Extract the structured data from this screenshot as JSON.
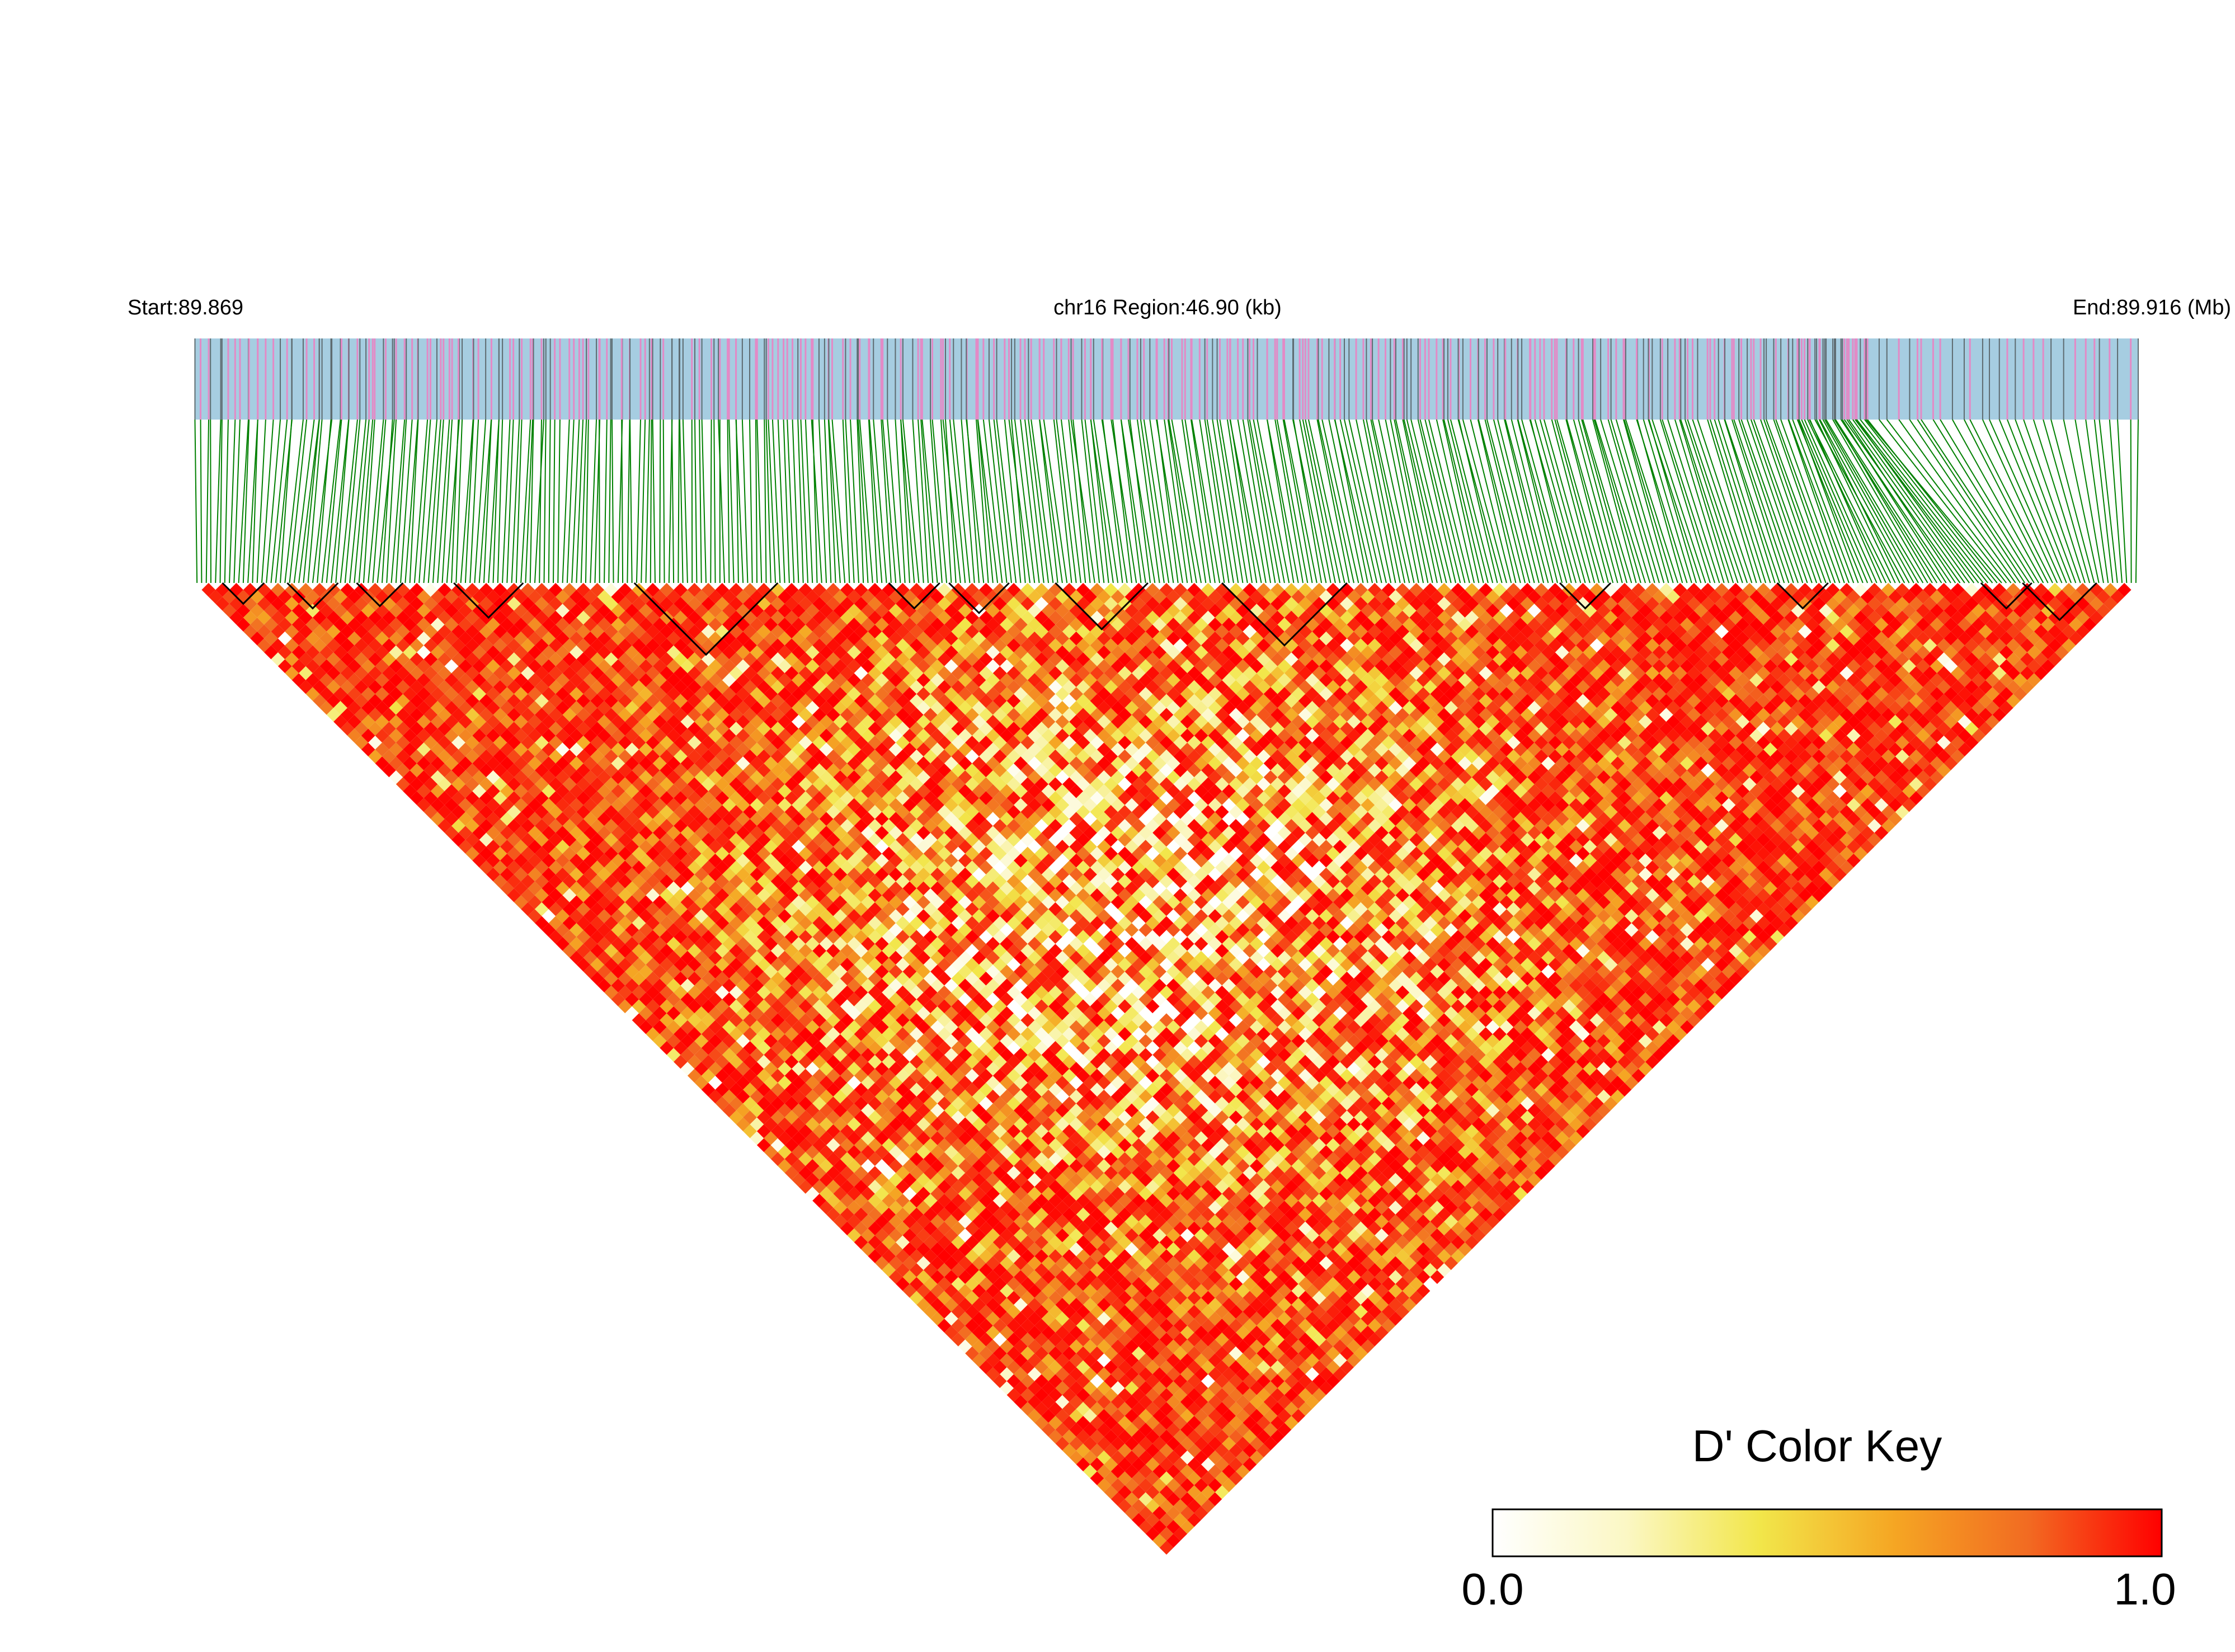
{
  "chart_data": {
    "type": "heatmap",
    "title": "",
    "region": {
      "start_label": "Start:89.869",
      "center_label": "chr16 Region:46.90 (kb)",
      "end_label": "End:89.916 (Mb)",
      "start_mb": 89.869,
      "end_mb": 89.916,
      "length_kb": 46.9
    },
    "metric": "D'",
    "color_key": {
      "title": "D' Color Key",
      "min_label": "0.0",
      "max_label": "1.0",
      "min": 0.0,
      "max": 1.0,
      "stops": [
        "#ffffff",
        "#fbf7c4",
        "#f2e64a",
        "#f5a623",
        "#f26b22",
        "#ff0000"
      ]
    },
    "colors": {
      "track_background": "#a6cde1",
      "snp_highlight": "#e38ac6",
      "snp_tick": "#5e6b70",
      "connector_lines": "#008000",
      "block_outline": "#000000"
    },
    "snp_count": 420,
    "predominant_value": "high D' (red, ~1.0) throughout, with scattered lower values (yellow/white) in the central region",
    "ld_blocks_snp_ranges": [
      [
        6,
        14
      ],
      [
        20,
        30
      ],
      [
        35,
        44
      ],
      [
        56,
        70
      ],
      [
        95,
        125
      ],
      [
        150,
        160
      ],
      [
        163,
        175
      ],
      [
        186,
        205
      ],
      [
        222,
        248
      ],
      [
        295,
        305
      ],
      [
        342,
        352
      ],
      [
        386,
        396
      ],
      [
        395,
        410
      ]
    ]
  }
}
